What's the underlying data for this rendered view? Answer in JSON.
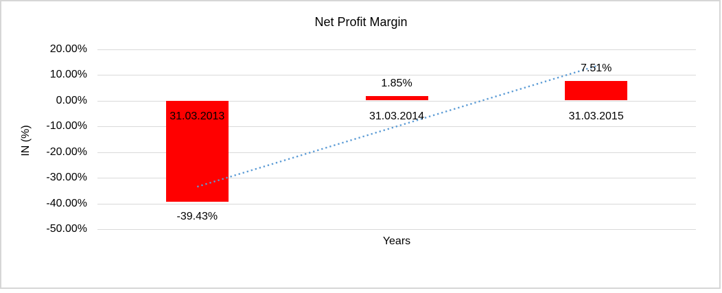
{
  "window": {
    "background": "#ffffff",
    "border_color": "#d6d6d6"
  },
  "chart_data": {
    "type": "bar",
    "title": "Net Profit Margin",
    "xlabel": "Years",
    "ylabel": "IN (%)",
    "categories": [
      "31.03.2013",
      "31.03.2014",
      "31.03.2015"
    ],
    "series": [
      {
        "name": "Net Profit Margin",
        "values": [
          -39.43,
          1.85,
          7.51
        ],
        "color": "#ff0000"
      }
    ],
    "data_labels": [
      "-39.43%",
      "1.85%",
      "7.51%"
    ],
    "y_ticks": [
      {
        "label": "20.00%",
        "value": 20
      },
      {
        "label": "10.00%",
        "value": 10
      },
      {
        "label": "0.00%",
        "value": 0
      },
      {
        "label": "-10.00%",
        "value": -10
      },
      {
        "label": "-20.00%",
        "value": -20
      },
      {
        "label": "-30.00%",
        "value": -30
      },
      {
        "label": "-40.00%",
        "value": -40
      },
      {
        "label": "-50.00%",
        "value": -50
      }
    ],
    "ylim": [
      -50,
      20
    ],
    "grid": true,
    "gridline_color": "#d9d9d9",
    "bar_color": "#ff0000",
    "legend": "none",
    "trendline": {
      "type": "linear",
      "style": "dotted",
      "color": "#5b9bd5",
      "start": {
        "category_index": 0,
        "value": -33.5
      },
      "end": {
        "category_index": 2,
        "value": 13.4
      }
    }
  }
}
